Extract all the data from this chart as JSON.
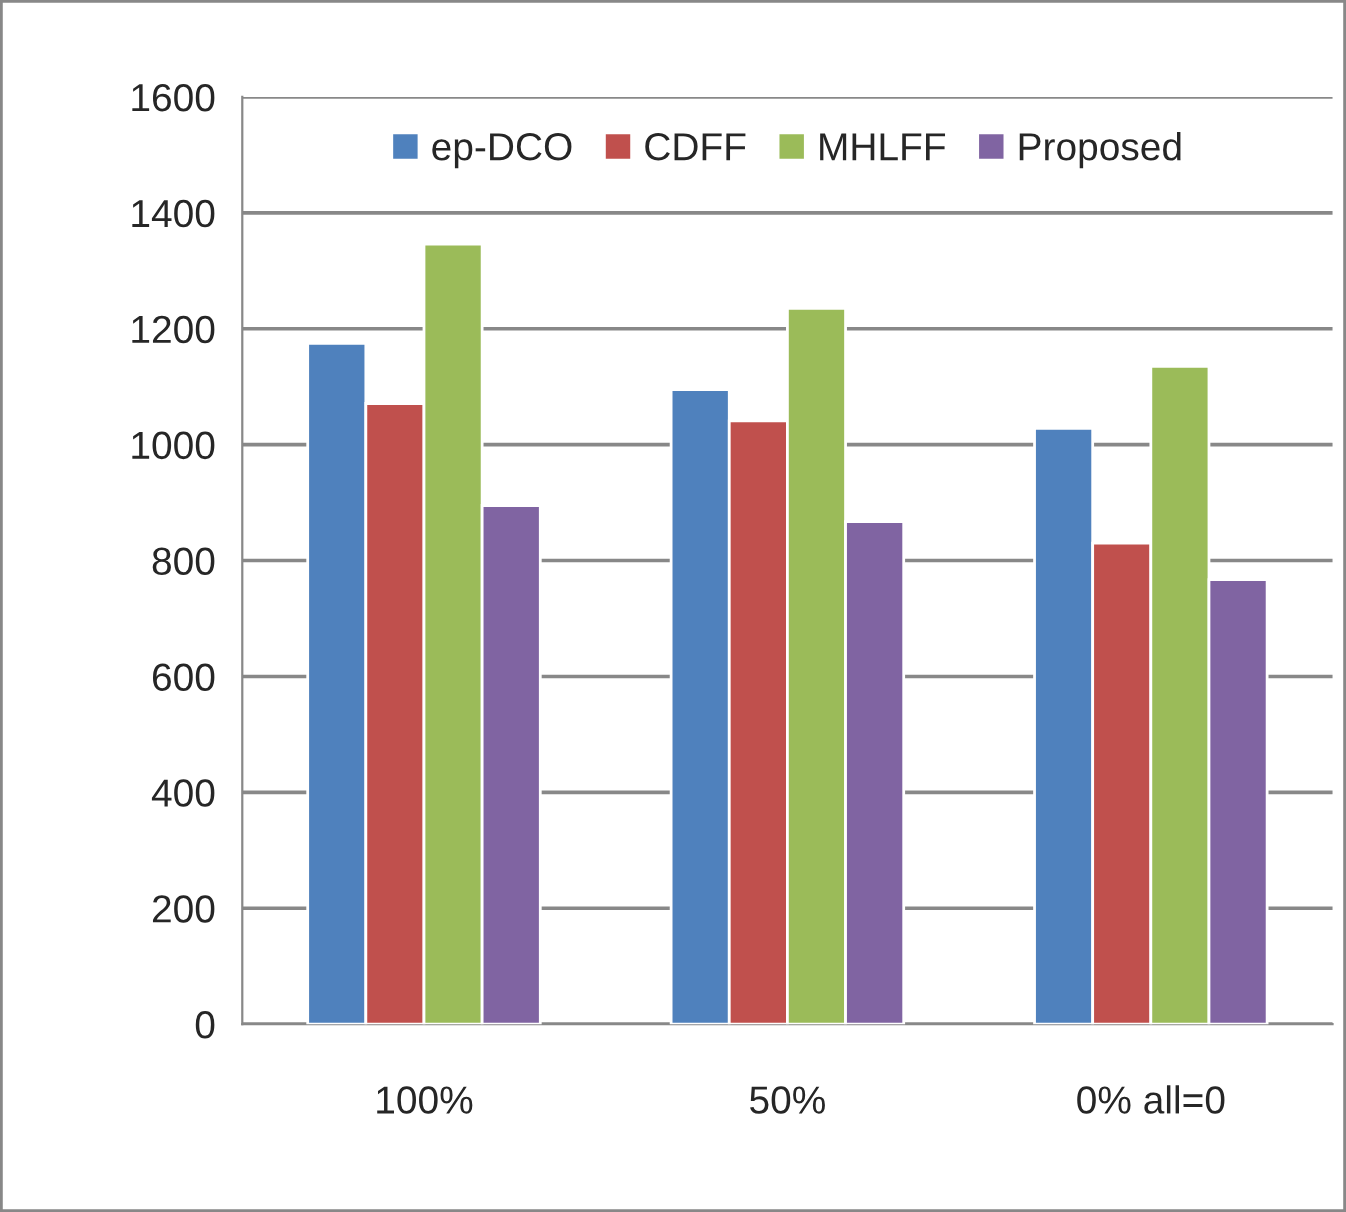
{
  "chart_data": {
    "type": "bar",
    "categories": [
      "100%",
      "50%",
      "0% all=0"
    ],
    "series": [
      {
        "name": "ep-DCO",
        "color": "#4f81bd",
        "values": [
          1175,
          1095,
          1028
        ]
      },
      {
        "name": "CDFF",
        "color": "#c0504d",
        "values": [
          1071,
          1041,
          830
        ]
      },
      {
        "name": "MHLFF",
        "color": "#9bbb59",
        "values": [
          1346,
          1235,
          1135
        ]
      },
      {
        "name": "Proposed",
        "color": "#8064a2",
        "values": [
          895,
          867,
          767
        ]
      }
    ],
    "ylim": [
      0,
      1600
    ],
    "yticks": [
      0,
      200,
      400,
      600,
      800,
      1000,
      1200,
      1400,
      1600
    ],
    "grid": "y",
    "legend": "top"
  }
}
